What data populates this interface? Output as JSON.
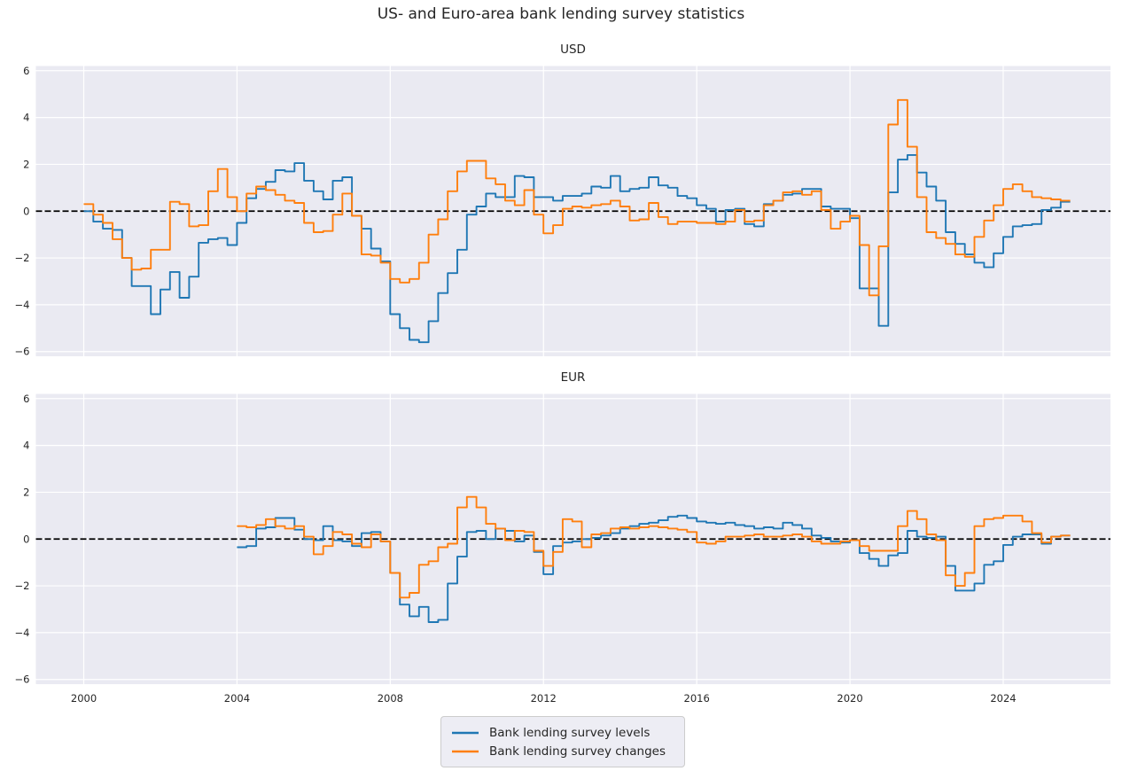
{
  "title": "US- and Euro-area bank lending survey statistics",
  "colors": {
    "levels": "#1f77b4",
    "changes": "#ff7f0e",
    "axes_bg": "#eaeaf2",
    "grid": "#ffffff",
    "zero_line": "#000000",
    "text": "#262626",
    "legend_bg": "#eaeaf2",
    "legend_border": "#cccccc"
  },
  "legend": {
    "position": "lower center",
    "items": [
      {
        "label": "Bank lending survey levels",
        "color_key": "levels"
      },
      {
        "label": "Bank lending survey changes",
        "color_key": "changes"
      }
    ]
  },
  "chart_data": [
    {
      "type": "line",
      "style": "step-post",
      "title": "USD",
      "xlabel": "",
      "ylabel": "",
      "grid": true,
      "xlim": [
        1998.75,
        2026.8
      ],
      "ylim": [
        -6.2,
        6.2
      ],
      "x_ticks": [
        2000,
        2004,
        2008,
        2012,
        2016,
        2020,
        2024
      ],
      "y_ticks": [
        -6,
        -4,
        -2,
        0,
        2,
        4,
        6
      ],
      "zero_line_dashed": true,
      "x_start": 2000.0,
      "x_step": 0.25,
      "series": [
        {
          "name": "Bank lending survey levels",
          "color_key": "levels",
          "values": [
            0.0,
            -0.45,
            -0.75,
            -0.8,
            -2.0,
            -3.2,
            -3.2,
            -4.4,
            -3.35,
            -2.6,
            -3.7,
            -2.8,
            -1.35,
            -1.2,
            -1.15,
            -1.45,
            -0.5,
            0.55,
            0.95,
            1.25,
            1.75,
            1.7,
            2.05,
            1.3,
            0.85,
            0.5,
            1.3,
            1.45,
            -0.2,
            -0.75,
            -1.6,
            -2.15,
            -4.4,
            -5.0,
            -5.5,
            -5.6,
            -4.7,
            -3.5,
            -2.65,
            -1.65,
            -0.15,
            0.2,
            0.75,
            0.6,
            0.6,
            1.5,
            1.45,
            0.6,
            0.6,
            0.45,
            0.65,
            0.65,
            0.75,
            1.05,
            1.0,
            1.5,
            0.85,
            0.95,
            1.0,
            1.45,
            1.1,
            1.0,
            0.65,
            0.55,
            0.25,
            0.1,
            -0.45,
            0.05,
            0.1,
            -0.55,
            -0.65,
            0.3,
            0.45,
            0.7,
            0.75,
            0.95,
            0.95,
            0.2,
            0.1,
            0.1,
            -0.3,
            -3.3,
            -3.3,
            -4.9,
            0.8,
            2.2,
            2.4,
            1.65,
            1.05,
            0.45,
            -0.9,
            -1.4,
            -1.85,
            -2.2,
            -2.4,
            -1.8,
            -1.1,
            -0.65,
            -0.6,
            -0.55,
            0.05,
            0.15,
            0.4
          ]
        },
        {
          "name": "Bank lending survey changes",
          "color_key": "changes",
          "values": [
            0.3,
            -0.15,
            -0.5,
            -1.2,
            -2.0,
            -2.5,
            -2.45,
            -1.65,
            -1.65,
            0.4,
            0.3,
            -0.65,
            -0.6,
            0.85,
            1.8,
            0.6,
            0.0,
            0.75,
            1.05,
            0.9,
            0.7,
            0.45,
            0.35,
            -0.5,
            -0.9,
            -0.85,
            -0.15,
            0.75,
            -0.2,
            -1.85,
            -1.9,
            -2.2,
            -2.9,
            -3.05,
            -2.9,
            -2.2,
            -1.0,
            -0.35,
            0.85,
            1.7,
            2.15,
            2.15,
            1.4,
            1.15,
            0.45,
            0.25,
            0.9,
            -0.15,
            -0.95,
            -0.6,
            0.1,
            0.2,
            0.15,
            0.25,
            0.3,
            0.45,
            0.2,
            -0.4,
            -0.35,
            0.35,
            -0.25,
            -0.55,
            -0.45,
            -0.45,
            -0.5,
            -0.5,
            -0.55,
            -0.45,
            0.05,
            -0.45,
            -0.4,
            0.25,
            0.45,
            0.8,
            0.85,
            0.7,
            0.85,
            0.05,
            -0.75,
            -0.45,
            -0.2,
            -1.45,
            -3.6,
            -1.5,
            3.7,
            4.75,
            2.75,
            0.6,
            -0.9,
            -1.15,
            -1.4,
            -1.85,
            -1.95,
            -1.1,
            -0.4,
            0.25,
            0.95,
            1.15,
            0.85,
            0.6,
            0.55,
            0.5,
            0.45
          ]
        }
      ]
    },
    {
      "type": "line",
      "style": "step-post",
      "title": "EUR",
      "xlabel": "",
      "ylabel": "",
      "grid": true,
      "xlim": [
        1998.75,
        2026.8
      ],
      "ylim": [
        -6.2,
        6.2
      ],
      "x_ticks": [
        2000,
        2004,
        2008,
        2012,
        2016,
        2020,
        2024
      ],
      "y_ticks": [
        -6,
        -4,
        -2,
        0,
        2,
        4,
        6
      ],
      "zero_line_dashed": true,
      "x_start": 2004.0,
      "x_step": 0.25,
      "series": [
        {
          "name": "Bank lending survey levels",
          "color_key": "levels",
          "values": [
            -0.35,
            -0.3,
            0.45,
            0.5,
            0.9,
            0.9,
            0.4,
            0.0,
            -0.05,
            0.55,
            -0.05,
            -0.1,
            -0.3,
            0.25,
            0.3,
            -0.1,
            -1.45,
            -2.8,
            -3.3,
            -2.9,
            -3.55,
            -3.45,
            -1.9,
            -0.75,
            0.3,
            0.35,
            0.0,
            0.45,
            0.35,
            -0.1,
            0.15,
            -0.55,
            -1.5,
            -0.3,
            -0.15,
            -0.1,
            0.0,
            0.05,
            0.15,
            0.25,
            0.45,
            0.55,
            0.65,
            0.7,
            0.8,
            0.95,
            1.0,
            0.9,
            0.75,
            0.7,
            0.65,
            0.7,
            0.6,
            0.55,
            0.45,
            0.5,
            0.45,
            0.7,
            0.6,
            0.45,
            0.15,
            0.05,
            -0.1,
            -0.15,
            -0.05,
            -0.6,
            -0.85,
            -1.15,
            -0.7,
            -0.6,
            0.35,
            0.1,
            0.05,
            0.1,
            -1.15,
            -2.2,
            -2.2,
            -1.9,
            -1.1,
            -0.95,
            -0.25,
            0.1,
            0.2,
            0.2,
            -0.2,
            0.1,
            0.15
          ]
        },
        {
          "name": "Bank lending survey changes",
          "color_key": "changes",
          "values": [
            0.55,
            0.5,
            0.6,
            0.85,
            0.55,
            0.45,
            0.55,
            0.1,
            -0.65,
            -0.3,
            0.3,
            0.2,
            -0.2,
            -0.35,
            0.2,
            -0.1,
            -1.45,
            -2.5,
            -2.3,
            -1.1,
            -0.95,
            -0.35,
            -0.2,
            1.35,
            1.8,
            1.35,
            0.65,
            0.45,
            -0.05,
            0.35,
            0.3,
            -0.5,
            -1.15,
            -0.55,
            0.85,
            0.75,
            -0.35,
            0.2,
            0.25,
            0.45,
            0.5,
            0.45,
            0.5,
            0.55,
            0.5,
            0.45,
            0.4,
            0.3,
            -0.15,
            -0.2,
            -0.1,
            0.1,
            0.1,
            0.15,
            0.2,
            0.1,
            0.1,
            0.15,
            0.2,
            0.1,
            -0.1,
            -0.2,
            -0.2,
            -0.1,
            -0.05,
            -0.3,
            -0.5,
            -0.5,
            -0.5,
            0.55,
            1.2,
            0.85,
            0.2,
            -0.05,
            -1.55,
            -2.0,
            -1.45,
            0.55,
            0.85,
            0.9,
            1.0,
            1.0,
            0.75,
            0.25,
            -0.15,
            0.1,
            0.15
          ]
        }
      ]
    }
  ]
}
